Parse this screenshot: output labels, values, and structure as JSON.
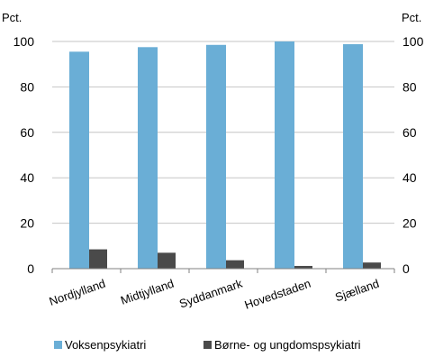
{
  "chart_data": {
    "type": "bar",
    "y_unit_left": "Pct.",
    "y_unit_right": "Pct.",
    "ylim": [
      0,
      100
    ],
    "yticks": [
      0,
      20,
      40,
      60,
      80,
      100
    ],
    "grid": true,
    "legend_position": "bottom",
    "categories": [
      "Nordjylland",
      "Midtjylland",
      "Syddanmark",
      "Hovedstaden",
      "Sjælland"
    ],
    "series": [
      {
        "name": "Voksenpsykiatri",
        "color": "#6aaed6",
        "values": [
          95.5,
          97.5,
          98.5,
          100,
          98.8
        ]
      },
      {
        "name": "Børne- og ungdomspsykiatri",
        "color": "#4a4a4a",
        "values": [
          8.5,
          7,
          3.7,
          1.2,
          2.7
        ]
      }
    ]
  }
}
